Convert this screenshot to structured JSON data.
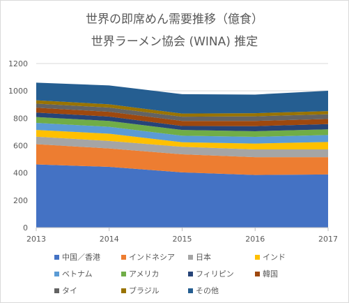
{
  "chart_data": {
    "type": "area",
    "stacked": true,
    "title": "世界の即席めん需要推移（億食）",
    "subtitle": "世界ラーメン協会 (WINA) 推定",
    "x": [
      "2013",
      "2014",
      "2015",
      "2016",
      "2017"
    ],
    "ylim": [
      0,
      1200
    ],
    "yticks": [
      "0",
      "200",
      "400",
      "600",
      "800",
      "1000",
      "1200"
    ],
    "grid": true,
    "legend_position": "bottom",
    "series": [
      {
        "name": "中国／香港",
        "color": "#4472c4",
        "values": [
          462,
          444,
          404,
          385,
          389
        ]
      },
      {
        "name": "インドネシア",
        "color": "#ed7d31",
        "values": [
          148,
          135,
          132,
          130,
          126
        ]
      },
      {
        "name": "日本",
        "color": "#a5a5a5",
        "values": [
          55,
          55,
          55,
          57,
          57
        ]
      },
      {
        "name": "インド",
        "color": "#ffc000",
        "values": [
          49,
          53,
          33,
          43,
          54
        ]
      },
      {
        "name": "ベトナム",
        "color": "#5b9bd5",
        "values": [
          52,
          50,
          48,
          49,
          51
        ]
      },
      {
        "name": "アメリカ",
        "color": "#70ad47",
        "values": [
          43,
          43,
          42,
          41,
          42
        ]
      },
      {
        "name": "フィリピン",
        "color": "#264478",
        "values": [
          32,
          32,
          29,
          37,
          38
        ]
      },
      {
        "name": "韓国",
        "color": "#9e480e",
        "values": [
          36,
          35,
          37,
          38,
          38
        ]
      },
      {
        "name": "タイ",
        "color": "#636363",
        "values": [
          30,
          31,
          31,
          34,
          34
        ]
      },
      {
        "name": "ブラジル",
        "color": "#997300",
        "values": [
          24,
          24,
          23,
          23,
          23
        ]
      },
      {
        "name": "その他",
        "color": "#255e91",
        "values": [
          129,
          138,
          142,
          136,
          149
        ]
      }
    ]
  }
}
